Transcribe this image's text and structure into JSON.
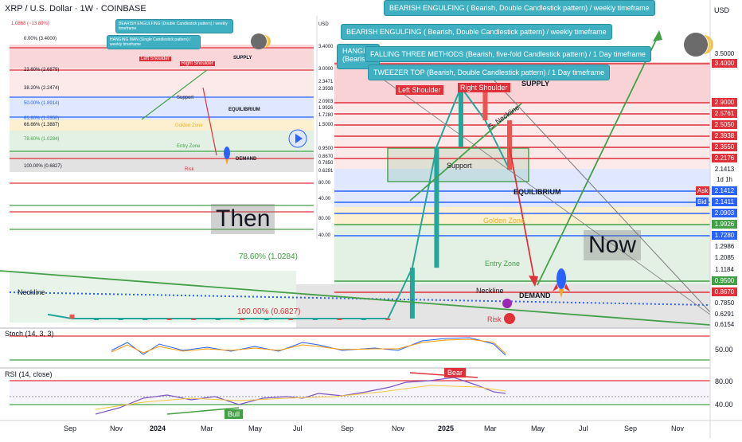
{
  "header": {
    "symbol": "XRP / U.S. Dollar · 1W · COINBASE",
    "currency": "USD"
  },
  "callouts": {
    "c1": "BEARISH ENGULFING ( Bearish, Double Candlestick pattern) / weekly timeframe",
    "c2": "BEARISH ENGULFING ( Bearish, Double Candlestick pattern) / weekly timeframe",
    "c3": "FALLING THREE METHODS (Bearish, five-fold Candlestick pattern) / 1 Day timeframe",
    "c4": "TWEEZER TOP (Bearish, Double Candlestick pattern) / 1 Day timeframe",
    "c5": "HANGIN (Bearish",
    "s1": "BEARISH ENGULFING (Double Candlestick pattern) / weekly timeframe",
    "s2": "HANGING MAN (Single Candlestick pattern) / weekly timeframe"
  },
  "labels": {
    "then": "Then",
    "now": "Now",
    "left_shoulder": "Left Shoulder",
    "right_shoulder": "Right Shoulder",
    "supply": "SUPPLY",
    "support": "Support",
    "neckline_diag": "S. Neckline",
    "equilibrium": "EQUILIBRIUM",
    "golden_zone": "Golden Zone",
    "entry_zone": "Entry Zone",
    "neckline": "Neckline",
    "demand": "DEMAND",
    "risk": "Risk",
    "fib_786": "78.60% (1.0284)",
    "fib_100": "100.00% (0.6827)",
    "mini_fib_top": "1.0868 (−13.89%)",
    "mini_fib": [
      "0.00% (3.4000)",
      "23.60% (2.6879)",
      "38.20% (2.2474)",
      "50.00% (1.8914)",
      "61.80% (1.5350)",
      "66.66% (1.3887)",
      "78.60% (1.0284)",
      "100.00% (0.6827)"
    ],
    "mini_y": [
      "USD",
      "3.4000",
      "3.0000",
      "2.3471",
      "2.3938",
      "2.0903",
      "1.9926",
      "1.7280",
      "1.5000",
      "0.9500",
      "0.8670",
      "0.7850",
      "0.6291",
      "80.00",
      "40.00",
      "80.00",
      "40.00"
    ]
  },
  "price_axis": [
    {
      "v": "3.5000",
      "y": 68,
      "c": "#131722",
      "bg": ""
    },
    {
      "v": "3.4000",
      "y": 80,
      "c": "#ffffff",
      "bg": "#e0313a"
    },
    {
      "v": "2.9000",
      "y": 129,
      "c": "#ffffff",
      "bg": "#e0313a"
    },
    {
      "v": "2.5761",
      "y": 143,
      "c": "#ffffff",
      "bg": "#e0313a"
    },
    {
      "v": "2.5050",
      "y": 157,
      "c": "#ffffff",
      "bg": "#e0313a"
    },
    {
      "v": "2.3938",
      "y": 171,
      "c": "#ffffff",
      "bg": "#e0313a"
    },
    {
      "v": "2.3550",
      "y": 185,
      "c": "#ffffff",
      "bg": "#e0313a"
    },
    {
      "v": "2.2176",
      "y": 199,
      "c": "#ffffff",
      "bg": "#e0313a"
    },
    {
      "v": "2.1413",
      "y": 213,
      "c": "#131722",
      "bg": ""
    },
    {
      "v": "1d 1h",
      "y": 226,
      "c": "#131722",
      "bg": ""
    },
    {
      "v": "2.1412",
      "y": 240,
      "c": "#ffffff",
      "bg": "#2962ff"
    },
    {
      "v": "2.1411",
      "y": 254,
      "c": "#ffffff",
      "bg": "#2962ff"
    },
    {
      "v": "2.0903",
      "y": 268,
      "c": "#ffffff",
      "bg": "#2962ff"
    },
    {
      "v": "1.9926",
      "y": 282,
      "c": "#ffffff",
      "bg": "#43a047"
    },
    {
      "v": "1.7280",
      "y": 296,
      "c": "#ffffff",
      "bg": "#2962ff"
    },
    {
      "v": "1.2986",
      "y": 310,
      "c": "#131722",
      "bg": ""
    },
    {
      "v": "1.2085",
      "y": 324,
      "c": "#131722",
      "bg": ""
    },
    {
      "v": "1.1184",
      "y": 339,
      "c": "#131722",
      "bg": ""
    },
    {
      "v": "0.9500",
      "y": 353,
      "c": "#ffffff",
      "bg": "#43a047"
    },
    {
      "v": "0.8670",
      "y": 367,
      "c": "#ffffff",
      "bg": "#e0313a"
    },
    {
      "v": "0.7850",
      "y": 381,
      "c": "#131722",
      "bg": ""
    },
    {
      "v": "0.6291",
      "y": 395,
      "c": "#131722",
      "bg": ""
    },
    {
      "v": "0.6154",
      "y": 408,
      "c": "#131722",
      "bg": ""
    }
  ],
  "ask_bid": {
    "ask": "Ask",
    "bid": "Bid"
  },
  "indicators": {
    "stoch": {
      "label": "Stoch (14, 3, 3)",
      "level": "50.00"
    },
    "rsi": {
      "label": "RSI (14, close)",
      "hi": "80.00",
      "lo": "40.00",
      "bear": "Bear",
      "bull": "Bull"
    }
  },
  "chart_data": {
    "type": "line",
    "title": "XRP / U.S. Dollar · 1W · COINBASE",
    "x_ticks": [
      "Sep",
      "Nov",
      "2024",
      "Mar",
      "May",
      "Jul",
      "Sep",
      "Nov",
      "2025",
      "Mar",
      "May",
      "Jul",
      "Sep",
      "Nov"
    ],
    "series": [
      {
        "name": "",
        "x": [
          "2023-08",
          "2023-09",
          "2023-10",
          "2023-11",
          "2023-12",
          "2024-01",
          "2024-02",
          "2024-03",
          "2024-04",
          "2024-05",
          "2024-06",
          "2024-07",
          "2024-08",
          "2024-09",
          "2024-10",
          "2024-11",
          "2024-12",
          "2025-01",
          "2025-02",
          "2025-03"
        ],
        "values": [
          0.63,
          0.52,
          0.55,
          0.62,
          0.62,
          0.55,
          0.53,
          0.62,
          0.52,
          0.52,
          0.49,
          0.58,
          0.57,
          0.58,
          0.53,
          1.1,
          2.4,
          3.1,
          2.7,
          2.14
        ]
      }
    ],
    "levels": [
      3.4,
      2.9,
      2.5761,
      2.505,
      2.3938,
      2.355,
      2.2176,
      2.1413,
      2.0903,
      1.9926,
      1.728,
      1.2986,
      1.2085,
      1.1184,
      0.95,
      0.867,
      0.785,
      0.6291,
      0.6154
    ],
    "ylim": [
      0.6154,
      3.5
    ],
    "xlabel": "",
    "ylabel": "USD",
    "grid": true
  },
  "colors": {
    "red": "#e0313a",
    "green": "#43a047",
    "blue": "#2962ff",
    "teal": "#3fb0c2",
    "gold": "#f5c542"
  }
}
